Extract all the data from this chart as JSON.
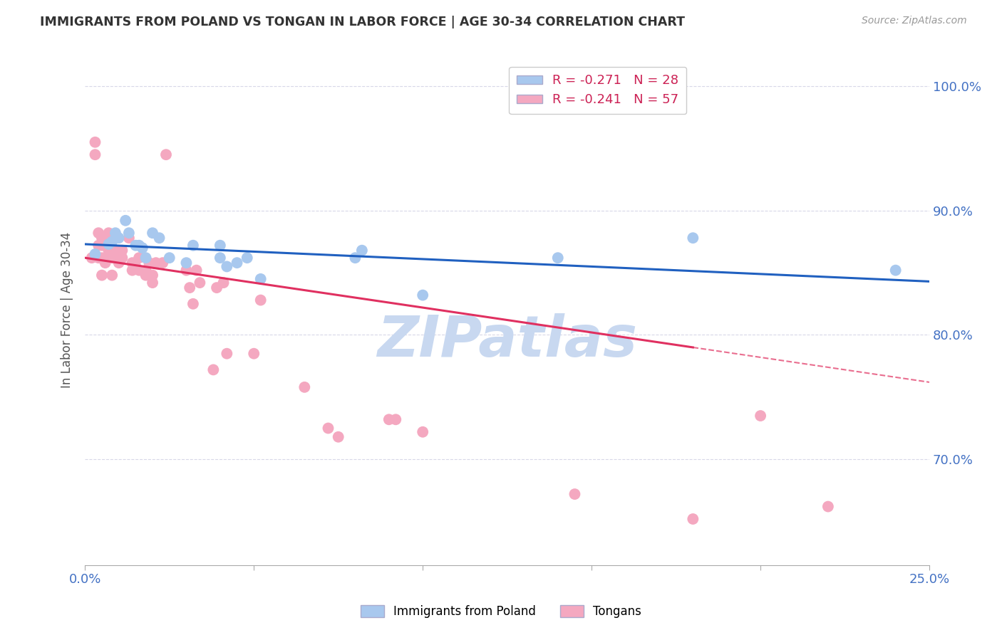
{
  "title": "IMMIGRANTS FROM POLAND VS TONGAN IN LABOR FORCE | AGE 30-34 CORRELATION CHART",
  "source": "Source: ZipAtlas.com",
  "ylabel": "In Labor Force | Age 30-34",
  "xlim": [
    0.0,
    0.25
  ],
  "ylim": [
    0.615,
    1.025
  ],
  "yticks": [
    0.7,
    0.8,
    0.9,
    1.0
  ],
  "ytick_labels": [
    "70.0%",
    "80.0%",
    "90.0%",
    "100.0%"
  ],
  "xticks": [
    0.0,
    0.05,
    0.1,
    0.15,
    0.2,
    0.25
  ],
  "xtick_labels": [
    "0.0%",
    "",
    "",
    "",
    "",
    "25.0%"
  ],
  "poland_color": "#a8c8ee",
  "tongan_color": "#f4a8c0",
  "poland_line_color": "#2060c0",
  "tongan_line_color": "#e03060",
  "legend_r_poland": "R = -0.271",
  "legend_n_poland": "N = 28",
  "legend_r_tongan": "R = -0.241",
  "legend_n_tongan": "N = 57",
  "poland_trendline": [
    [
      0.0,
      0.873
    ],
    [
      0.25,
      0.843
    ]
  ],
  "tongan_trendline_solid": [
    [
      0.0,
      0.862
    ],
    [
      0.18,
      0.79
    ]
  ],
  "tongan_trendline_dash": [
    [
      0.18,
      0.79
    ],
    [
      0.25,
      0.762
    ]
  ],
  "poland_x": [
    0.003,
    0.007,
    0.008,
    0.009,
    0.01,
    0.012,
    0.013,
    0.015,
    0.016,
    0.017,
    0.018,
    0.02,
    0.022,
    0.025,
    0.03,
    0.032,
    0.04,
    0.04,
    0.042,
    0.045,
    0.048,
    0.052,
    0.08,
    0.082,
    0.1,
    0.14,
    0.18,
    0.24
  ],
  "poland_y": [
    0.865,
    0.873,
    0.875,
    0.882,
    0.878,
    0.892,
    0.882,
    0.872,
    0.872,
    0.87,
    0.862,
    0.882,
    0.878,
    0.862,
    0.858,
    0.872,
    0.872,
    0.862,
    0.855,
    0.858,
    0.862,
    0.845,
    0.862,
    0.868,
    0.832,
    0.862,
    0.878,
    0.852
  ],
  "tongan_x": [
    0.002,
    0.003,
    0.003,
    0.004,
    0.004,
    0.004,
    0.005,
    0.005,
    0.005,
    0.005,
    0.006,
    0.006,
    0.007,
    0.007,
    0.007,
    0.008,
    0.008,
    0.009,
    0.01,
    0.01,
    0.011,
    0.011,
    0.013,
    0.014,
    0.014,
    0.015,
    0.016,
    0.016,
    0.018,
    0.018,
    0.019,
    0.02,
    0.02,
    0.021,
    0.023,
    0.024,
    0.03,
    0.031,
    0.032,
    0.033,
    0.034,
    0.038,
    0.039,
    0.041,
    0.042,
    0.05,
    0.052,
    0.065,
    0.072,
    0.075,
    0.09,
    0.092,
    0.1,
    0.145,
    0.18,
    0.2,
    0.22
  ],
  "tongan_y": [
    0.862,
    0.945,
    0.955,
    0.862,
    0.872,
    0.882,
    0.848,
    0.862,
    0.872,
    0.878,
    0.858,
    0.862,
    0.868,
    0.872,
    0.882,
    0.848,
    0.862,
    0.868,
    0.858,
    0.862,
    0.862,
    0.868,
    0.878,
    0.852,
    0.858,
    0.855,
    0.852,
    0.862,
    0.848,
    0.852,
    0.858,
    0.848,
    0.842,
    0.858,
    0.858,
    0.945,
    0.852,
    0.838,
    0.825,
    0.852,
    0.842,
    0.772,
    0.838,
    0.842,
    0.785,
    0.785,
    0.828,
    0.758,
    0.725,
    0.718,
    0.732,
    0.732,
    0.722,
    0.672,
    0.652,
    0.735,
    0.662
  ],
  "watermark": "ZIPatlas",
  "watermark_color": "#c8d8f0",
  "background_color": "#ffffff",
  "grid_color": "#d8d8e8"
}
